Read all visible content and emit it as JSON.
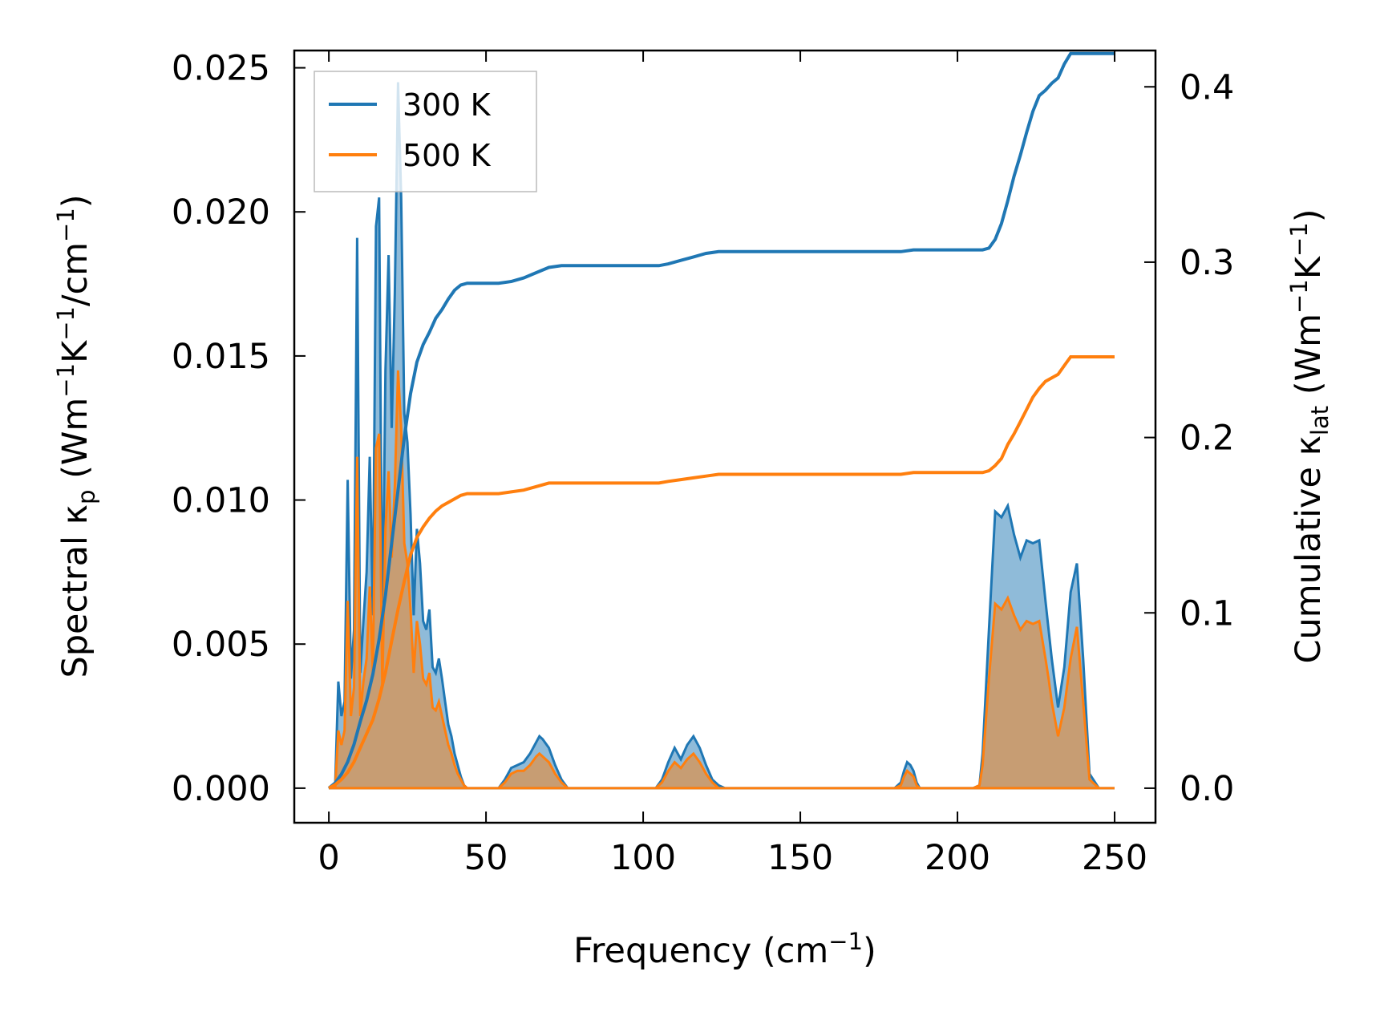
{
  "chart_data": {
    "type": "line",
    "xlabel_main": "Frequency (cm",
    "xlabel_sup": "−1",
    "xlabel_end": ")",
    "ylabel_left": {
      "pre": "Spectral κ",
      "sub": "p",
      "mid": " (Wm",
      "sup1": "−1",
      "k": "K",
      "sup2": "−1",
      "tail": "/cm",
      "sup3": "−1",
      "end": ")"
    },
    "ylabel_right": {
      "pre": "Cumulative κ",
      "sub": "lat",
      "mid": " (Wm",
      "sup1": "−1",
      "k": "K",
      "sup2": "−1",
      "end": ")"
    },
    "xlim": [
      -11,
      263
    ],
    "ylim_left": [
      -0.0012,
      0.0256
    ],
    "ylim_right": [
      -0.0197,
      0.4207
    ],
    "x_ticks": [
      0,
      50,
      100,
      150,
      200,
      250
    ],
    "x_tick_labels": [
      "0",
      "50",
      "100",
      "150",
      "200",
      "250"
    ],
    "y_left_ticks": [
      0,
      0.005,
      0.01,
      0.015,
      0.02,
      0.025
    ],
    "y_left_tick_labels": [
      "0.000",
      "0.005",
      "0.010",
      "0.015",
      "0.020",
      "0.025"
    ],
    "y_right_ticks": [
      0,
      0.1,
      0.2,
      0.3,
      0.4
    ],
    "y_right_tick_labels": [
      "0.0",
      "0.1",
      "0.2",
      "0.3",
      "0.4"
    ],
    "legend": {
      "position": "top-left",
      "entries": [
        "300 K",
        "500 K"
      ]
    },
    "colors": {
      "300K": "#1f77b4",
      "500K": "#ff7f0e",
      "fill300": "#1f77b4",
      "fill500": "#ff7f0e"
    },
    "spectral": {
      "x": [
        0,
        2,
        3,
        4,
        5,
        6,
        7,
        8,
        9,
        10,
        11,
        12,
        13,
        14,
        15,
        16,
        17,
        18,
        19,
        20,
        21,
        22,
        23,
        24,
        25,
        26,
        27,
        28,
        29,
        30,
        31,
        32,
        33,
        34,
        35,
        36,
        37,
        38,
        39,
        40,
        41,
        42,
        43,
        44,
        45,
        46,
        50,
        54,
        56,
        58,
        60,
        62,
        64,
        66,
        67,
        68,
        70,
        72,
        74,
        76,
        80,
        90,
        100,
        104,
        106,
        108,
        110,
        112,
        114,
        116,
        118,
        120,
        122,
        124,
        126,
        130,
        150,
        170,
        180,
        182,
        183,
        184,
        185,
        186,
        187,
        188,
        190,
        200,
        205,
        207,
        208,
        210,
        212,
        214,
        216,
        218,
        220,
        222,
        224,
        226,
        228,
        229,
        230,
        232,
        234,
        236,
        238,
        240,
        242,
        245,
        250
      ],
      "series": [
        {
          "name": "300 K",
          "values": [
            0,
            0.0001,
            0.0037,
            0.0025,
            0.003,
            0.0107,
            0.0038,
            0.0055,
            0.0191,
            0.004,
            0.0058,
            0.0075,
            0.0115,
            0.006,
            0.0195,
            0.0205,
            0.005,
            0.0145,
            0.0185,
            0.0125,
            0.0172,
            0.0245,
            0.0205,
            0.013,
            0.012,
            0.0095,
            0.006,
            0.009,
            0.0078,
            0.0058,
            0.0055,
            0.0062,
            0.0042,
            0.004,
            0.0045,
            0.0038,
            0.003,
            0.0022,
            0.0018,
            0.0012,
            0.0008,
            0.0004,
            0.0001,
            0,
            0,
            0,
            0,
            0,
            0.0003,
            0.0007,
            0.0008,
            0.0009,
            0.0012,
            0.0016,
            0.0018,
            0.0017,
            0.0014,
            0.0008,
            0.0003,
            0,
            0,
            0,
            0,
            0,
            0.0003,
            0.0009,
            0.0014,
            0.001,
            0.0015,
            0.0018,
            0.0014,
            0.0008,
            0.0003,
            0.0001,
            0,
            0,
            0,
            0,
            0,
            0.0002,
            0.0006,
            0.0009,
            0.0008,
            0.0006,
            0.0002,
            0,
            0,
            0,
            0,
            0.0001,
            0.0012,
            0.0055,
            0.0096,
            0.0094,
            0.0098,
            0.0088,
            0.008,
            0.0086,
            0.0085,
            0.0086,
            0.0065,
            0.0055,
            0.0045,
            0.0028,
            0.0042,
            0.0068,
            0.0078,
            0.0045,
            0.0005,
            0,
            0
          ]
        },
        {
          "name": "500 K",
          "values": [
            0,
            0,
            0.002,
            0.0015,
            0.002,
            0.0065,
            0.0025,
            0.0035,
            0.0115,
            0.0025,
            0.0037,
            0.0045,
            0.007,
            0.004,
            0.0118,
            0.0123,
            0.0035,
            0.009,
            0.011,
            0.008,
            0.0105,
            0.0145,
            0.0125,
            0.0085,
            0.0078,
            0.0062,
            0.004,
            0.0058,
            0.005,
            0.0038,
            0.0036,
            0.004,
            0.0028,
            0.0027,
            0.003,
            0.0025,
            0.002,
            0.0015,
            0.0012,
            0.0008,
            0.0005,
            0.0003,
            0.0001,
            0,
            0,
            0,
            0,
            0,
            0.0002,
            0.0005,
            0.0006,
            0.0006,
            0.0008,
            0.0011,
            0.0012,
            0.0011,
            0.0009,
            0.0005,
            0.0002,
            0,
            0,
            0,
            0,
            0,
            0.0002,
            0.0006,
            0.0009,
            0.0007,
            0.001,
            0.0012,
            0.0009,
            0.0005,
            0.0002,
            0,
            0,
            0,
            0,
            0,
            0,
            0.0001,
            0.0004,
            0.0006,
            0.0005,
            0.0004,
            0.0001,
            0,
            0,
            0,
            0,
            0.0001,
            0.0008,
            0.0038,
            0.0064,
            0.0062,
            0.0066,
            0.006,
            0.0055,
            0.0058,
            0.0057,
            0.0058,
            0.0045,
            0.0038,
            0.003,
            0.0018,
            0.0028,
            0.0045,
            0.0056,
            0.003,
            0.0003,
            0,
            0
          ]
        }
      ]
    },
    "cumulative": {
      "x": [
        0,
        2,
        4,
        6,
        8,
        10,
        12,
        14,
        16,
        18,
        20,
        22,
        24,
        26,
        28,
        30,
        32,
        34,
        36,
        38,
        40,
        42,
        44,
        46,
        50,
        54,
        58,
        62,
        66,
        70,
        74,
        80,
        90,
        100,
        105,
        108,
        112,
        116,
        120,
        124,
        130,
        150,
        170,
        180,
        182,
        186,
        190,
        200,
        205,
        207,
        208,
        210,
        212,
        214,
        216,
        218,
        220,
        222,
        224,
        226,
        228,
        230,
        232,
        234,
        236,
        238,
        240,
        245,
        250
      ],
      "series": [
        {
          "name": "300 K",
          "values": [
            0,
            0.003,
            0.008,
            0.015,
            0.025,
            0.038,
            0.05,
            0.065,
            0.085,
            0.11,
            0.14,
            0.17,
            0.2,
            0.225,
            0.243,
            0.253,
            0.26,
            0.268,
            0.273,
            0.279,
            0.284,
            0.287,
            0.288,
            0.288,
            0.288,
            0.288,
            0.289,
            0.291,
            0.294,
            0.297,
            0.298,
            0.298,
            0.298,
            0.298,
            0.298,
            0.299,
            0.301,
            0.303,
            0.305,
            0.306,
            0.306,
            0.306,
            0.306,
            0.306,
            0.306,
            0.307,
            0.307,
            0.307,
            0.307,
            0.307,
            0.307,
            0.308,
            0.313,
            0.322,
            0.335,
            0.349,
            0.361,
            0.374,
            0.386,
            0.395,
            0.398,
            0.402,
            0.405,
            0.413,
            0.419,
            0.419,
            0.419,
            0.419,
            0.419
          ]
        },
        {
          "name": "500 K",
          "values": [
            0,
            0.002,
            0.005,
            0.009,
            0.015,
            0.023,
            0.031,
            0.039,
            0.051,
            0.066,
            0.084,
            0.102,
            0.118,
            0.133,
            0.143,
            0.149,
            0.154,
            0.158,
            0.161,
            0.163,
            0.165,
            0.167,
            0.168,
            0.168,
            0.168,
            0.168,
            0.169,
            0.17,
            0.172,
            0.174,
            0.174,
            0.174,
            0.174,
            0.174,
            0.174,
            0.175,
            0.176,
            0.177,
            0.178,
            0.179,
            0.179,
            0.179,
            0.179,
            0.179,
            0.179,
            0.18,
            0.18,
            0.18,
            0.18,
            0.18,
            0.18,
            0.181,
            0.184,
            0.188,
            0.196,
            0.202,
            0.209,
            0.216,
            0.223,
            0.228,
            0.232,
            0.234,
            0.236,
            0.241,
            0.246,
            0.246,
            0.246,
            0.246,
            0.246
          ]
        }
      ]
    }
  }
}
